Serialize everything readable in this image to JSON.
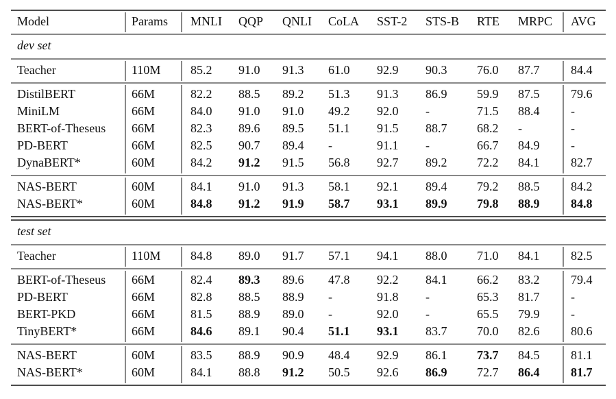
{
  "table": {
    "header": [
      "Model",
      "Params",
      "MNLI",
      "QQP",
      "QNLI",
      "CoLA",
      "SST-2",
      "STS-B",
      "RTE",
      "MRPC",
      "AVG"
    ],
    "sections": [
      {
        "label": "dev set",
        "groups": [
          [
            [
              "Teacher",
              "110M",
              "85.2",
              "91.0",
              "91.3",
              "61.0",
              "92.9",
              "90.3",
              "76.0",
              "87.7",
              "84.4"
            ]
          ],
          [
            [
              "DistilBERT",
              "66M",
              "82.2",
              "88.5",
              "89.2",
              "51.3",
              "91.3",
              "86.9",
              "59.9",
              "87.5",
              "79.6"
            ],
            [
              "MiniLM",
              "66M",
              "84.0",
              "91.0",
              "91.0",
              "49.2",
              "92.0",
              "-",
              "71.5",
              "88.4",
              "-"
            ],
            [
              "BERT-of-Theseus",
              "66M",
              "82.3",
              "89.6",
              "89.5",
              "51.1",
              "91.5",
              "88.7",
              "68.2",
              "-",
              "-"
            ],
            [
              "PD-BERT",
              "66M",
              "82.5",
              "90.7",
              "89.4",
              "-",
              "91.1",
              "-",
              "66.7",
              "84.9",
              "-"
            ],
            [
              "DynaBERT*",
              "60M",
              "84.2",
              {
                "text": "91.2",
                "bold": true
              },
              "91.5",
              "56.8",
              "92.7",
              "89.2",
              "72.2",
              "84.1",
              "82.7"
            ]
          ],
          [
            [
              "NAS-BERT",
              "60M",
              "84.1",
              "91.0",
              "91.3",
              "58.1",
              "92.1",
              "89.4",
              "79.2",
              "88.5",
              "84.2"
            ],
            [
              "NAS-BERT*",
              "60M",
              {
                "text": "84.8",
                "bold": true
              },
              {
                "text": "91.2",
                "bold": true
              },
              {
                "text": "91.9",
                "bold": true
              },
              {
                "text": "58.7",
                "bold": true
              },
              {
                "text": "93.1",
                "bold": true
              },
              {
                "text": "89.9",
                "bold": true
              },
              {
                "text": "79.8",
                "bold": true
              },
              {
                "text": "88.9",
                "bold": true
              },
              {
                "text": "84.8",
                "bold": true
              }
            ]
          ]
        ]
      },
      {
        "label": "test set",
        "groups": [
          [
            [
              "Teacher",
              "110M",
              "84.8",
              "89.0",
              "91.7",
              "57.1",
              "94.1",
              "88.0",
              "71.0",
              "84.1",
              "82.5"
            ]
          ],
          [
            [
              "BERT-of-Theseus",
              "66M",
              "82.4",
              {
                "text": "89.3",
                "bold": true
              },
              "89.6",
              "47.8",
              "92.2",
              "84.1",
              "66.2",
              "83.2",
              "79.4"
            ],
            [
              "PD-BERT",
              "66M",
              "82.8",
              "88.5",
              "88.9",
              "-",
              "91.8",
              "-",
              "65.3",
              "81.7",
              "-"
            ],
            [
              "BERT-PKD",
              "66M",
              "81.5",
              "88.9",
              "89.0",
              "-",
              "92.0",
              "-",
              "65.5",
              "79.9",
              "-"
            ],
            [
              "TinyBERT*",
              "66M",
              {
                "text": "84.6",
                "bold": true
              },
              "89.1",
              "90.4",
              {
                "text": "51.1",
                "bold": true
              },
              {
                "text": "93.1",
                "bold": true
              },
              "83.7",
              "70.0",
              "82.6",
              "80.6"
            ]
          ],
          [
            [
              "NAS-BERT",
              "60M",
              "83.5",
              "88.9",
              "90.9",
              "48.4",
              "92.9",
              "86.1",
              {
                "text": "73.7",
                "bold": true
              },
              "84.5",
              "81.1"
            ],
            [
              "NAS-BERT*",
              "60M",
              "84.1",
              "88.8",
              {
                "text": "91.2",
                "bold": true
              },
              "50.5",
              "92.6",
              {
                "text": "86.9",
                "bold": true
              },
              "72.7",
              {
                "text": "86.4",
                "bold": true
              },
              {
                "text": "81.7",
                "bold": true
              }
            ]
          ]
        ]
      }
    ]
  }
}
